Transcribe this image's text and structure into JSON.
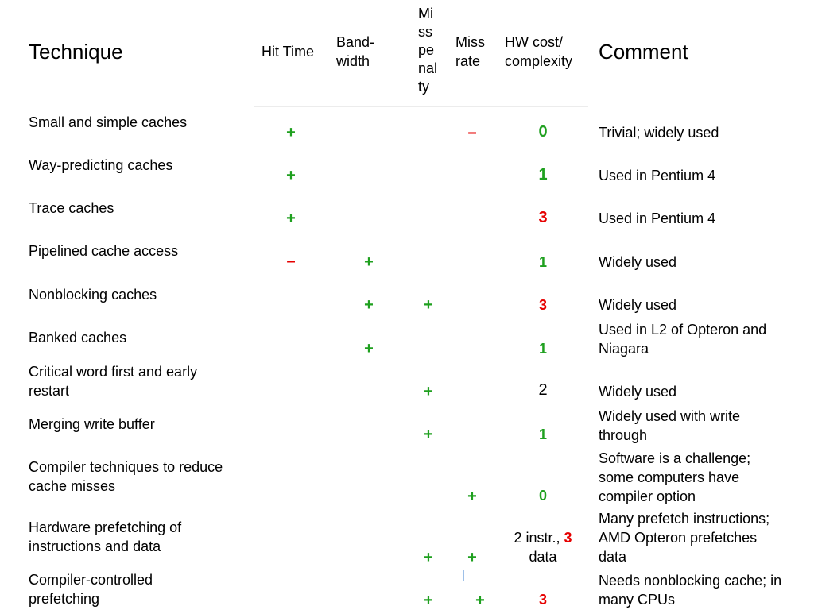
{
  "headers": {
    "technique": "Technique",
    "hit_time": "Hit Time",
    "bandwidth_1": "Band-",
    "bandwidth_2": "width",
    "miss_penalty": [
      "Mi",
      "ss",
      "pe",
      "nal",
      "ty"
    ],
    "miss_rate_1": "Miss",
    "miss_rate_2": "rate",
    "hw_cost_1": "HW cost/",
    "hw_cost_2": "complexity",
    "comment": "Comment"
  },
  "rows": [
    {
      "technique": [
        "Small and simple caches"
      ],
      "hit_time": "+",
      "miss_rate": "–",
      "hw_cost": "0",
      "comment": [
        "Trivial; widely used"
      ]
    },
    {
      "technique": [
        "Way-predicting caches"
      ],
      "hit_time": "+",
      "hw_cost": "1",
      "comment": [
        "Used in Pentium 4"
      ]
    },
    {
      "technique": [
        "Trace caches"
      ],
      "hit_time": "+",
      "hw_cost": "3",
      "comment": [
        "Used in Pentium 4"
      ]
    },
    {
      "technique": [
        "Pipelined cache access"
      ],
      "hit_time": "–",
      "bandwidth": "+",
      "hw_cost": "1",
      "comment": [
        "Widely used"
      ]
    },
    {
      "technique": [
        "Nonblocking caches"
      ],
      "bandwidth": "+",
      "miss_penalty": "+",
      "hw_cost": "3",
      "comment": [
        "Widely used"
      ]
    },
    {
      "technique": [
        "Banked caches"
      ],
      "bandwidth": "+",
      "hw_cost": "1",
      "comment": [
        "Used in L2 of Opteron and",
        "Niagara"
      ]
    },
    {
      "technique": [
        "Critical word first and early",
        "restart"
      ],
      "miss_penalty": "+",
      "hw_cost": "2",
      "comment": [
        "Widely used"
      ]
    },
    {
      "technique": [
        "Merging write buffer"
      ],
      "miss_penalty": "+",
      "hw_cost": "1",
      "comment": [
        "Widely used with write",
        "through"
      ]
    },
    {
      "technique": [
        "Compiler techniques to reduce",
        "cache misses"
      ],
      "miss_rate": "+",
      "hw_cost": "0",
      "comment": [
        "Software is a challenge;",
        "some computers have",
        "compiler option"
      ]
    },
    {
      "technique": [
        "Hardware prefetching of",
        "instructions and data"
      ],
      "miss_penalty": "+",
      "miss_rate": "+",
      "hw_cost_parts": [
        "2 instr., ",
        "3",
        "data"
      ],
      "comment": [
        "Many prefetch instructions;",
        "AMD Opteron prefetches",
        "data"
      ]
    },
    {
      "technique": [
        "Compiler-controlled",
        "prefetching"
      ],
      "miss_penalty": "+",
      "miss_rate": "+",
      "hw_cost": "3",
      "comment": [
        "Needs nonblocking cache; in",
        "many CPUs"
      ]
    }
  ],
  "colors": {
    "plus": "#1fa01f",
    "minus": "#e60000",
    "cost_low": "#1fa01f",
    "cost_high": "#e60000"
  }
}
